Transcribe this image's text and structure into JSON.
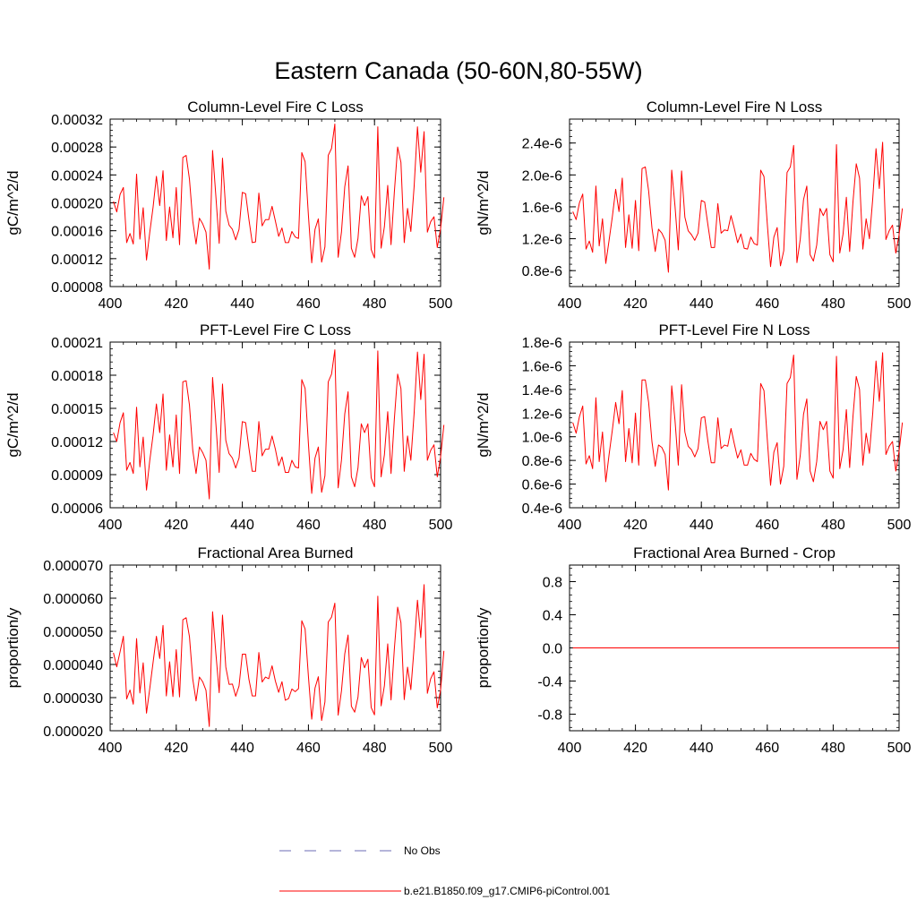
{
  "title": "Eastern Canada (50-60N,80-55W)",
  "legend": {
    "obs_label": "No Obs",
    "model_label": "b.e21.B1850.f09_g17.CMIP6-piControl.001",
    "obs_color": "#6b6bb5",
    "model_color": "#ff0000"
  },
  "chart_data": [
    {
      "type": "line",
      "title": "Column-Level Fire C Loss",
      "ylabel": "gC/m^2/d",
      "xlim": [
        400,
        500
      ],
      "ylim": [
        8e-05,
        0.00032
      ],
      "xticks": [
        "400",
        "420",
        "440",
        "460",
        "480",
        "500"
      ],
      "yticks": [
        "0.00008",
        "0.00012",
        "0.00016",
        "0.00020",
        "0.00024",
        "0.00028",
        "0.00032"
      ],
      "ytick_values": [
        8e-05,
        0.00012,
        0.00016,
        0.0002,
        0.00024,
        0.00028,
        0.00032
      ],
      "series": [
        {
          "name": "b.e21.B1850.f09_g17.CMIP6-piControl.001",
          "x_start": 401,
          "values": [
            0.000202,
            0.000187,
            0.000212,
            0.000222,
            0.000143,
            0.000156,
            0.000141,
            0.000241,
            0.000148,
            0.000193,
            0.000118,
            0.000158,
            0.000194,
            0.000238,
            0.000196,
            0.000246,
            0.000146,
            0.000194,
            0.00015,
            0.000222,
            0.00014,
            0.000265,
            0.000268,
            0.000234,
            0.000174,
            0.000141,
            0.000178,
            0.00017,
            0.000158,
            0.000105,
            0.000275,
            0.000209,
            0.000142,
            0.000264,
            0.000188,
            0.000168,
            0.000162,
            0.000147,
            0.000162,
            0.000215,
            0.000213,
            0.000176,
            0.000143,
            0.000144,
            0.000214,
            0.000167,
            0.000176,
            0.000176,
            0.000195,
            0.000174,
            0.000152,
            0.000164,
            0.000143,
            0.000143,
            0.000159,
            0.000151,
            0.000149,
            0.000272,
            0.000259,
            0.000182,
            0.000114,
            0.000162,
            0.000177,
            0.000115,
            0.000137,
            0.000268,
            0.000278,
            0.000313,
            0.000122,
            0.000158,
            0.000223,
            0.000253,
            0.000135,
            0.000122,
            0.000149,
            0.00021,
            0.000196,
            0.000209,
            0.000133,
            0.000121,
            0.000309,
            0.000135,
            0.000166,
            0.000225,
            0.00014,
            0.000215,
            0.00028,
            0.000258,
            0.000143,
            0.000192,
            0.000159,
            0.000224,
            0.000309,
            0.000244,
            0.000302,
            0.000158,
            0.000173,
            0.00018,
            0.000136,
            0.000163,
            0.000208
          ]
        }
      ]
    },
    {
      "type": "line",
      "title": "Column-Level Fire N Loss",
      "ylabel": "gN/m^2/d",
      "xlim": [
        400,
        500
      ],
      "ylim": [
        6e-07,
        2.7e-06
      ],
      "xticks": [
        "400",
        "420",
        "440",
        "460",
        "480",
        "500"
      ],
      "yticks": [
        "0.8e-6",
        "1.2e-6",
        "1.6e-6",
        "2.0e-6",
        "2.4e-6"
      ],
      "ytick_values": [
        8e-07,
        1.2e-06,
        1.6e-06,
        2e-06,
        2.4e-06
      ],
      "series": [
        {
          "name": "b.e21.B1850.f09_g17.CMIP6-piControl.001",
          "x_start": 401,
          "values": [
            1.54e-06,
            1.44e-06,
            1.65e-06,
            1.76e-06,
            1.07e-06,
            1.17e-06,
            1.03e-06,
            1.86e-06,
            1.11e-06,
            1.45e-06,
            8.9e-07,
            1.18e-06,
            1.48e-06,
            1.82e-06,
            1.54e-06,
            1.96e-06,
            1.09e-06,
            1.5e-06,
            1.08e-06,
            1.68e-06,
            1.05e-06,
            2.08e-06,
            2.1e-06,
            1.8e-06,
            1.34e-06,
            1.04e-06,
            1.32e-06,
            1.27e-06,
            1.18e-06,
            7.8e-07,
            2.06e-06,
            1.61e-06,
            1.06e-06,
            2.05e-06,
            1.47e-06,
            1.3e-06,
            1.25e-06,
            1.18e-06,
            1.27e-06,
            1.68e-06,
            1.66e-06,
            1.37e-06,
            1.09e-06,
            1.09e-06,
            1.64e-06,
            1.27e-06,
            1.31e-06,
            1.3e-06,
            1.49e-06,
            1.33e-06,
            1.15e-06,
            1.26e-06,
            1.08e-06,
            1.07e-06,
            1.22e-06,
            1.14e-06,
            1.12e-06,
            2.06e-06,
            1.98e-06,
            1.39e-06,
            8.5e-07,
            1.22e-06,
            1.34e-06,
            8.6e-07,
            1.05e-06,
            2.03e-06,
            2.1e-06,
            2.37e-06,
            9e-07,
            1.19e-06,
            1.69e-06,
            1.86e-06,
            1e-06,
            9.2e-07,
            1.12e-06,
            1.58e-06,
            1.49e-06,
            1.58e-06,
            1e-06,
            9.1e-07,
            2.38e-06,
            1.02e-06,
            1.26e-06,
            1.72e-06,
            1.04e-06,
            1.66e-06,
            2.14e-06,
            1.96e-06,
            1.07e-06,
            1.45e-06,
            1.2e-06,
            1.7e-06,
            2.33e-06,
            1.83e-06,
            2.41e-06,
            1.19e-06,
            1.3e-06,
            1.37e-06,
            1.02e-06,
            1.25e-06,
            1.58e-06
          ]
        }
      ]
    },
    {
      "type": "line",
      "title": "PFT-Level Fire C Loss",
      "ylabel": "gC/m^2/d",
      "xlim": [
        400,
        500
      ],
      "ylim": [
        6e-05,
        0.00021
      ],
      "xticks": [
        "400",
        "420",
        "440",
        "460",
        "480",
        "500"
      ],
      "yticks": [
        "0.00006",
        "0.00009",
        "0.00012",
        "0.00015",
        "0.00018",
        "0.00021"
      ],
      "ytick_values": [
        6e-05,
        9e-05,
        0.00012,
        0.00015,
        0.00018,
        0.00021
      ],
      "series": [
        {
          "name": "b.e21.B1850.f09_g17.CMIP6-piControl.001",
          "x_start": 401,
          "values": [
            0.000128,
            0.00012,
            0.000137,
            0.000146,
            9.4e-05,
            0.000101,
            9.1e-05,
            0.000151,
            9.7e-05,
            0.000124,
            7.6e-05,
            0.000103,
            0.000126,
            0.000154,
            0.000128,
            0.000163,
            9.4e-05,
            0.000126,
            9.7e-05,
            0.000144,
            9.1e-05,
            0.000174,
            0.000175,
            0.000153,
            0.000112,
            9.1e-05,
            0.000115,
            0.00011,
            0.000103,
            6.8e-05,
            0.000178,
            0.000136,
            9.2e-05,
            0.000172,
            0.000121,
            0.000109,
            0.000105,
            9.6e-05,
            0.000105,
            0.000138,
            0.000137,
            0.000114,
            9.3e-05,
            9.3e-05,
            0.000138,
            0.000107,
            0.000113,
            0.000113,
            0.000125,
            0.000113,
            9.8e-05,
            0.000106,
            9.2e-05,
            9.2e-05,
            0.000103,
            9.7e-05,
            9.6e-05,
            0.000176,
            0.000168,
            0.000118,
            7.3e-05,
            0.000105,
            0.000115,
            7.4e-05,
            8.9e-05,
            0.000174,
            0.000181,
            0.000203,
            7.8e-05,
            0.000103,
            0.000145,
            0.000165,
            8.8e-05,
            7.9e-05,
            9.6e-05,
            0.000136,
            0.000128,
            0.000136,
            8.7e-05,
            7.9e-05,
            0.000202,
            8.8e-05,
            0.000108,
            0.000147,
            9.1e-05,
            0.00014,
            0.000181,
            0.000168,
            9.3e-05,
            0.000125,
            0.000103,
            0.000146,
            0.000201,
            0.000158,
            0.000199,
            0.000103,
            0.000112,
            0.000117,
            8.8e-05,
            0.000106,
            0.000135
          ]
        }
      ]
    },
    {
      "type": "line",
      "title": "PFT-Level Fire N Loss",
      "ylabel": "gN/m^2/d",
      "xlim": [
        400,
        500
      ],
      "ylim": [
        4e-07,
        1.8e-06
      ],
      "xticks": [
        "400",
        "420",
        "440",
        "460",
        "480",
        "500"
      ],
      "yticks": [
        "0.4e-6",
        "0.6e-6",
        "0.8e-6",
        "1.0e-6",
        "1.2e-6",
        "1.4e-6",
        "1.6e-6",
        "1.8e-6"
      ],
      "ytick_values": [
        4e-07,
        6e-07,
        8e-07,
        1e-06,
        1.2e-06,
        1.4e-06,
        1.6e-06,
        1.8e-06
      ],
      "series": [
        {
          "name": "b.e21.B1850.f09_g17.CMIP6-piControl.001",
          "x_start": 401,
          "values": [
            1.12e-06,
            1.03e-06,
            1.17e-06,
            1.26e-06,
            7.7e-07,
            8.4e-07,
            7.3e-07,
            1.33e-06,
            7.9e-07,
            1.04e-06,
            6.2e-07,
            8.5e-07,
            1.06e-06,
            1.29e-06,
            1.11e-06,
            1.39e-06,
            7.9e-07,
            1.07e-06,
            7.8e-07,
            1.2e-06,
            7.6e-07,
            1.48e-06,
            1.48e-06,
            1.29e-06,
            9.6e-07,
            7.5e-07,
            9.3e-07,
            9.1e-07,
            8.5e-07,
            5.5e-07,
            1.43e-06,
            1.14e-06,
            7.6e-07,
            1.44e-06,
            1.04e-06,
            9.2e-07,
            8.9e-07,
            8.3e-07,
            9e-07,
            1.16e-06,
            1.17e-06,
            9.6e-07,
            7.8e-07,
            7.8e-07,
            1.16e-06,
            9e-07,
            9.3e-07,
            9.2e-07,
            1.07e-06,
            9.4e-07,
            8.2e-07,
            8.9e-07,
            7.6e-07,
            7.6e-07,
            8.6e-07,
            8.1e-07,
            7.9e-07,
            1.45e-06,
            1.39e-06,
            9.8e-07,
            5.9e-07,
            8.7e-07,
            9.5e-07,
            6e-07,
            7.5e-07,
            1.45e-06,
            1.5e-06,
            1.69e-06,
            6.4e-07,
            8.4e-07,
            1.19e-06,
            1.32e-06,
            7.1e-07,
            6.2e-07,
            7.9e-07,
            1.13e-06,
            1.06e-06,
            1.13e-06,
            7.1e-07,
            6.5e-07,
            1.68e-06,
            7.3e-07,
            8.9e-07,
            1.23e-06,
            7.4e-07,
            1.17e-06,
            1.51e-06,
            1.4e-06,
            7.6e-07,
            1.03e-06,
            8.6e-07,
            1.2e-06,
            1.64e-06,
            1.3e-06,
            1.71e-06,
            8.5e-07,
            9.2e-07,
            9.6e-07,
            7.1e-07,
            8.8e-07,
            1.12e-06
          ]
        }
      ]
    },
    {
      "type": "line",
      "title": "Fractional Area Burned",
      "ylabel": "proportion/y",
      "xlim": [
        400,
        500
      ],
      "ylim": [
        2e-05,
        7e-05
      ],
      "xticks": [
        "400",
        "420",
        "440",
        "460",
        "480",
        "500"
      ],
      "yticks": [
        "0.000020",
        "0.000030",
        "0.000040",
        "0.000050",
        "0.000060",
        "0.000070"
      ],
      "ytick_values": [
        2e-05,
        3e-05,
        4e-05,
        5e-05,
        6e-05,
        7e-05
      ],
      "series": [
        {
          "name": "b.e21.B1850.f09_g17.CMIP6-piControl.001",
          "x_start": 401,
          "values": [
            4.35e-05,
            3.93e-05,
            4.38e-05,
            4.85e-05,
            2.96e-05,
            3.23e-05,
            2.8e-05,
            4.78e-05,
            3.14e-05,
            4.05e-05,
            2.53e-05,
            3.28e-05,
            4.07e-05,
            4.85e-05,
            4.18e-05,
            5.18e-05,
            3.05e-05,
            4.08e-05,
            3.03e-05,
            4.45e-05,
            3.02e-05,
            5.35e-05,
            5.41e-05,
            4.84e-05,
            3.56e-05,
            2.9e-05,
            3.62e-05,
            3.48e-05,
            3.22e-05,
            2.13e-05,
            5.59e-05,
            4.33e-05,
            3.15e-05,
            5.49e-05,
            3.92e-05,
            3.4e-05,
            3.41e-05,
            3.04e-05,
            3.35e-05,
            4.31e-05,
            4.31e-05,
            3.55e-05,
            3.05e-05,
            3.05e-05,
            4.36e-05,
            3.47e-05,
            3.62e-05,
            3.57e-05,
            3.96e-05,
            3.5e-05,
            3.16e-05,
            3.48e-05,
            2.92e-05,
            2.97e-05,
            3.26e-05,
            3.18e-05,
            3.27e-05,
            5.32e-05,
            5.07e-05,
            3.64e-05,
            2.35e-05,
            3.29e-05,
            3.63e-05,
            2.31e-05,
            2.87e-05,
            5.28e-05,
            5.43e-05,
            5.85e-05,
            2.47e-05,
            3.2e-05,
            4.32e-05,
            4.89e-05,
            2.74e-05,
            2.56e-05,
            3.01e-05,
            4.21e-05,
            3.9e-05,
            4.16e-05,
            2.7e-05,
            2.48e-05,
            6.06e-05,
            2.75e-05,
            3.36e-05,
            4.62e-05,
            2.93e-05,
            4.46e-05,
            5.73e-05,
            5.26e-05,
            2.94e-05,
            3.92e-05,
            3.24e-05,
            4.53e-05,
            5.94e-05,
            4.81e-05,
            6.41e-05,
            3.13e-05,
            3.57e-05,
            3.78e-05,
            2.69e-05,
            3.23e-05,
            4.41e-05
          ]
        }
      ]
    },
    {
      "type": "line",
      "title": "Fractional Area Burned - Crop",
      "ylabel": "proportion/y",
      "xlim": [
        400,
        500
      ],
      "ylim": [
        -1.0,
        1.0
      ],
      "xticks": [
        "400",
        "420",
        "440",
        "460",
        "480",
        "500"
      ],
      "yticks": [
        "-0.8",
        "-0.4",
        "0.0",
        "0.4",
        "0.8"
      ],
      "ytick_values": [
        -0.8,
        -0.4,
        0.0,
        0.4,
        0.8
      ],
      "series": [
        {
          "name": "b.e21.B1850.f09_g17.CMIP6-piControl.001",
          "x": [
            401,
            500
          ],
          "values": [
            0.0,
            0.0
          ]
        }
      ]
    }
  ]
}
